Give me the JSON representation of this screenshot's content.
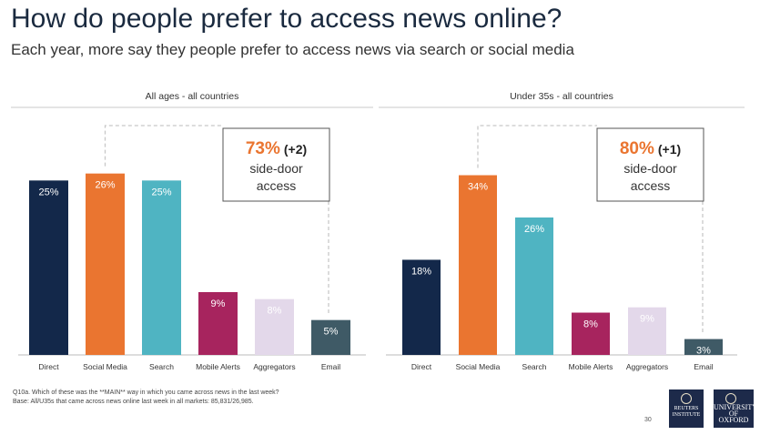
{
  "title": "How do people prefer to access news online?",
  "subtitle": "Each year, more say they people prefer to access news via search or social media",
  "chart_data": [
    {
      "type": "bar",
      "title": "All ages - all countries",
      "categories": [
        "Direct",
        "Social Media",
        "Search",
        "Mobile Alerts",
        "Aggregators",
        "Email"
      ],
      "values": [
        25,
        26,
        25,
        9,
        8,
        5
      ],
      "value_labels": [
        "25%",
        "26%",
        "25%",
        "9%",
        "8%",
        "5%"
      ],
      "colors": [
        "#13284a",
        "#ea7530",
        "#4fb4c2",
        "#a7245e",
        "#e3d8ea",
        "#3f5a66"
      ],
      "ylim": [
        0,
        30
      ],
      "callout": {
        "value": "73%",
        "change": "(+2)",
        "line1": "side-door",
        "line2": "access"
      }
    },
    {
      "type": "bar",
      "title": "Under 35s - all countries",
      "categories": [
        "Direct",
        "Social Media",
        "Search",
        "Mobile Alerts",
        "Aggregators",
        "Email"
      ],
      "values": [
        18,
        34,
        26,
        8,
        9,
        3
      ],
      "value_labels": [
        "18%",
        "34%",
        "26%",
        "8%",
        "9%",
        "3%"
      ],
      "colors": [
        "#13284a",
        "#ea7530",
        "#4fb4c2",
        "#a7245e",
        "#e3d8ea",
        "#3f5a66"
      ],
      "ylim": [
        0,
        39.6
      ],
      "callout": {
        "value": "80%",
        "change": "(+1)",
        "line1": "side-door",
        "line2": "access"
      }
    }
  ],
  "footnote": {
    "line1": "Q10a. Which of these was the **MAIN** way in which you came across news in the last week?",
    "line2": "Base: All/U35s that came across news online last week in all markets: 85,831/26,985."
  },
  "page_number": "30",
  "logos": {
    "reuters": "REUTERS INSTITUTE",
    "oxford": "UNIVERSITY OF OXFORD"
  }
}
